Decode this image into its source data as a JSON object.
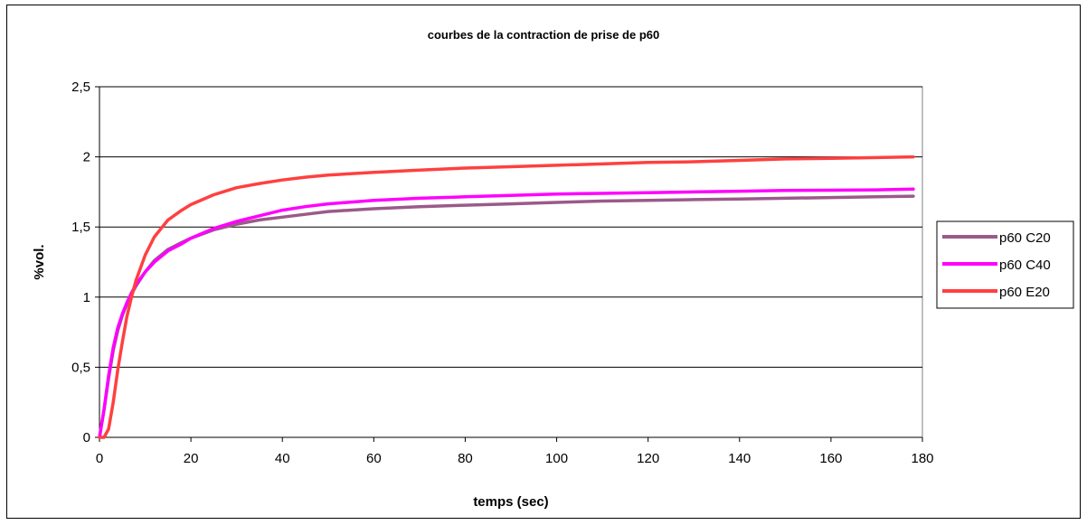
{
  "chart_data": {
    "type": "line",
    "title": "courbes de la contraction de prise de p60",
    "xlabel": "temps (sec)",
    "ylabel": "%vol.",
    "xlim": [
      0,
      180
    ],
    "ylim": [
      0,
      2.5
    ],
    "x_ticks": [
      0,
      20,
      40,
      60,
      80,
      100,
      120,
      140,
      160,
      180
    ],
    "x_tick_labels": [
      "0",
      "20",
      "40",
      "60",
      "80",
      "100",
      "120",
      "140",
      "160",
      "180"
    ],
    "y_ticks": [
      0,
      0.5,
      1,
      1.5,
      2,
      2.5
    ],
    "y_tick_labels": [
      "0",
      "0,5",
      "1",
      "1,5",
      "2",
      "2,5"
    ],
    "grid": "horizontal",
    "legend_position": "right",
    "series": [
      {
        "name": "p60 C20",
        "color": "#9a5a8a",
        "x": [
          0,
          1,
          2,
          3,
          4,
          5,
          6,
          7,
          8,
          10,
          12,
          15,
          18,
          20,
          25,
          30,
          35,
          40,
          45,
          50,
          60,
          70,
          80,
          90,
          100,
          110,
          120,
          130,
          140,
          150,
          160,
          170,
          178
        ],
        "y": [
          0,
          0.2,
          0.42,
          0.62,
          0.76,
          0.87,
          0.95,
          1.02,
          1.08,
          1.18,
          1.26,
          1.34,
          1.39,
          1.42,
          1.48,
          1.52,
          1.55,
          1.57,
          1.59,
          1.61,
          1.63,
          1.645,
          1.655,
          1.665,
          1.675,
          1.685,
          1.69,
          1.695,
          1.7,
          1.705,
          1.71,
          1.715,
          1.72
        ]
      },
      {
        "name": "p60 C40",
        "color": "#ff00ff",
        "x": [
          0,
          1,
          2,
          3,
          4,
          5,
          6,
          7,
          8,
          10,
          12,
          15,
          18,
          20,
          25,
          30,
          35,
          40,
          45,
          50,
          60,
          70,
          80,
          90,
          100,
          110,
          120,
          130,
          140,
          150,
          160,
          170,
          178
        ],
        "y": [
          0,
          0.2,
          0.44,
          0.64,
          0.78,
          0.88,
          0.96,
          1.03,
          1.09,
          1.18,
          1.25,
          1.33,
          1.38,
          1.42,
          1.49,
          1.54,
          1.58,
          1.62,
          1.645,
          1.665,
          1.69,
          1.705,
          1.715,
          1.725,
          1.735,
          1.74,
          1.745,
          1.75,
          1.755,
          1.76,
          1.762,
          1.765,
          1.77
        ]
      },
      {
        "name": "p60 E20",
        "color": "#ff4040",
        "x": [
          0,
          1,
          2,
          3,
          4,
          5,
          6,
          7,
          8,
          10,
          12,
          15,
          18,
          20,
          25,
          30,
          35,
          40,
          45,
          50,
          60,
          70,
          80,
          90,
          100,
          110,
          120,
          130,
          140,
          150,
          160,
          170,
          178
        ],
        "y": [
          0,
          0,
          0.06,
          0.25,
          0.48,
          0.68,
          0.86,
          1.0,
          1.12,
          1.3,
          1.43,
          1.55,
          1.62,
          1.66,
          1.73,
          1.78,
          1.81,
          1.835,
          1.855,
          1.87,
          1.89,
          1.905,
          1.92,
          1.93,
          1.94,
          1.95,
          1.96,
          1.965,
          1.975,
          1.985,
          1.99,
          1.995,
          2.0
        ]
      }
    ]
  }
}
